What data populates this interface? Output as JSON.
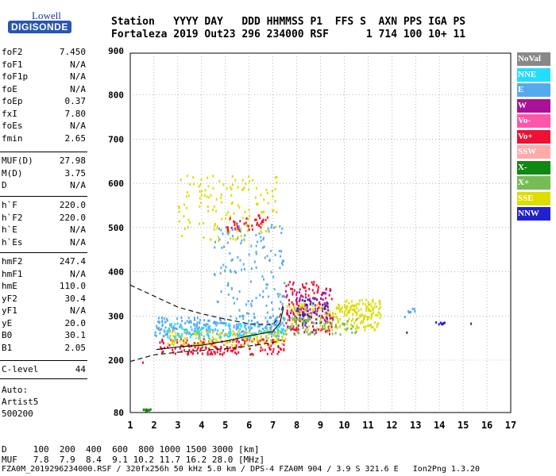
{
  "logo": {
    "top": "Lowell",
    "bottom": "DIGISONDE"
  },
  "header": {
    "line1": "Station   YYYY DAY   DDD HHMMSS P1  FFS S  AXN PPS IGA PS",
    "line2": "Fortaleza 2019 Out23 296 234000 RSF      1 714 100 10+ 11"
  },
  "params_group1": [
    {
      "key": "foF2",
      "value": "7.450"
    },
    {
      "key": "foF1",
      "value": "N/A"
    },
    {
      "key": "foF1p",
      "value": "N/A"
    },
    {
      "key": "foE",
      "value": "N/A"
    },
    {
      "key": "foEp",
      "value": "0.37"
    },
    {
      "key": "fxI",
      "value": "7.80"
    },
    {
      "key": "foEs",
      "value": "N/A"
    },
    {
      "key": "fmin",
      "value": "2.65"
    }
  ],
  "params_group2": [
    {
      "key": "MUF(D)",
      "value": "27.98"
    },
    {
      "key": "M(D)",
      "value": "3.75"
    },
    {
      "key": "D",
      "value": "N/A"
    }
  ],
  "params_group3": [
    {
      "key": "h`F",
      "value": "220.0"
    },
    {
      "key": "h`F2",
      "value": "220.0"
    },
    {
      "key": "h`E",
      "value": "N/A"
    },
    {
      "key": "h`Es",
      "value": "N/A"
    }
  ],
  "params_group4": [
    {
      "key": "hmF2",
      "value": "247.4"
    },
    {
      "key": "hmF1",
      "value": "N/A"
    },
    {
      "key": "hmE",
      "value": "110.0"
    },
    {
      "key": "yF2",
      "value": "30.4"
    },
    {
      "key": "yF1",
      "value": "N/A"
    },
    {
      "key": "yE",
      "value": "20.0"
    },
    {
      "key": "B0",
      "value": "30.1"
    },
    {
      "key": "B1",
      "value": "2.05"
    }
  ],
  "params_group5": [
    {
      "key": "C-level",
      "value": "44"
    }
  ],
  "auto": {
    "line1": "Auto:",
    "line2": "Artist5",
    "line3": "500200"
  },
  "legend": [
    {
      "label": "NoVal",
      "color": "#888888"
    },
    {
      "label": "NNE",
      "color": "#22ddff"
    },
    {
      "label": "E",
      "color": "#55aaee"
    },
    {
      "label": "W",
      "color": "#aa1199"
    },
    {
      "label": "Vo-",
      "color": "#ff55aa"
    },
    {
      "label": "Vo+",
      "color": "#ee1133"
    },
    {
      "label": "SSW",
      "color": "#ffaaaa"
    },
    {
      "label": "X-",
      "color": "#118811"
    },
    {
      "label": "X+",
      "color": "#77bb55"
    },
    {
      "label": "SSE",
      "color": "#dddd00"
    },
    {
      "label": "NNW",
      "color": "#2222cc"
    }
  ],
  "footer": {
    "line1": "D     100  200  400  600  800 1000 1500 3000 [km]",
    "line2": "MUF   7.8  7.9  8.4  9.1 10.2 11.7 16.2 28.0 [MHz]",
    "line3": "FZA0M_2019296234000.RSF / 320fx256h 50 kHz 5.0 km / DPS-4 FZA0M 904 / 3.9 S 321.6 E   Ion2Png 1.3.20"
  },
  "chart_data": {
    "type": "scatter",
    "x_ticks": [
      "1",
      "2",
      "3",
      "4",
      "5",
      "6",
      "7",
      "8",
      "9",
      "10",
      "11",
      "12",
      "13",
      "14",
      "15",
      "16",
      "17"
    ],
    "y_ticks": [
      "80",
      "200",
      "300",
      "400",
      "500",
      "600",
      "700",
      "800",
      "900"
    ],
    "xlim": [
      1,
      17
    ],
    "y_axis_scale": "ionogram-height",
    "grid": "dotted",
    "legend_position": "right",
    "clusters": [
      {
        "label": "E",
        "fmin": 2.0,
        "fmax": 7.5,
        "hmin": 255,
        "hmax": 300,
        "n": 260
      },
      {
        "label": "E",
        "fmin": 4.5,
        "fmax": 7.5,
        "hmin": 300,
        "hmax": 520,
        "n": 140
      },
      {
        "label": "Vo+",
        "fmin": 2.2,
        "fmax": 7.5,
        "hmin": 215,
        "hmax": 250,
        "n": 180
      },
      {
        "label": "SSE",
        "fmin": 2.5,
        "fmax": 7.5,
        "hmin": 235,
        "hmax": 270,
        "n": 150
      },
      {
        "label": "NNE",
        "fmin": 2.5,
        "fmax": 7.5,
        "hmin": 250,
        "hmax": 285,
        "n": 90
      },
      {
        "label": "SSE",
        "fmin": 3.0,
        "fmax": 7.2,
        "hmin": 470,
        "hmax": 620,
        "n": 140
      },
      {
        "label": "Vo+",
        "fmin": 5.0,
        "fmax": 6.8,
        "hmin": 495,
        "hmax": 530,
        "n": 40
      },
      {
        "label": "Vo+",
        "fmin": 7.5,
        "fmax": 9.5,
        "hmin": 260,
        "hmax": 380,
        "n": 130
      },
      {
        "label": "W",
        "fmin": 7.5,
        "fmax": 9.5,
        "hmin": 270,
        "hmax": 360,
        "n": 80
      },
      {
        "label": "NNW",
        "fmin": 7.8,
        "fmax": 9.3,
        "hmin": 280,
        "hmax": 340,
        "n": 50
      },
      {
        "label": "SSE",
        "fmin": 7.5,
        "fmax": 11.5,
        "hmin": 270,
        "hmax": 330,
        "n": 170
      },
      {
        "label": "X+",
        "fmin": 7.5,
        "fmax": 10.5,
        "hmin": 260,
        "hmax": 300,
        "n": 60
      },
      {
        "label": "SSE",
        "fmin": 10.0,
        "fmax": 11.5,
        "hmin": 290,
        "hmax": 340,
        "n": 60
      },
      {
        "label": "E",
        "fmin": 12.5,
        "fmax": 13.0,
        "hmin": 300,
        "hmax": 320,
        "n": 8
      },
      {
        "label": "NNW",
        "fmin": 13.8,
        "fmax": 14.2,
        "hmin": 282,
        "hmax": 288,
        "n": 8
      },
      {
        "label": "X-",
        "fmin": 1.5,
        "fmax": 1.9,
        "hmin": 86,
        "hmax": 90,
        "n": 10
      }
    ],
    "lines": [
      {
        "name": "profile",
        "style": "solid",
        "points": [
          [
            2.1,
            224
          ],
          [
            3,
            230
          ],
          [
            4,
            234
          ],
          [
            5,
            243
          ],
          [
            6,
            255
          ],
          [
            7,
            265
          ],
          [
            7.3,
            285
          ],
          [
            7.45,
            320
          ]
        ]
      },
      {
        "name": "trace-lower",
        "style": "dashed",
        "points": [
          [
            1,
            197
          ],
          [
            2,
            212
          ],
          [
            3,
            218
          ],
          [
            4,
            222
          ],
          [
            5,
            226
          ],
          [
            6,
            232
          ],
          [
            7,
            240
          ],
          [
            7.4,
            246
          ]
        ]
      },
      {
        "name": "trace-upper",
        "style": "dashed",
        "points": [
          [
            1,
            370
          ],
          [
            2,
            345
          ],
          [
            3,
            320
          ],
          [
            4,
            305
          ],
          [
            5,
            293
          ],
          [
            6,
            282
          ],
          [
            7,
            280
          ],
          [
            7.3,
            300
          ],
          [
            7.45,
            330
          ]
        ]
      }
    ],
    "isolated_points": [
      {
        "label": "Vo+",
        "f": 1.5,
        "h": 197
      },
      {
        "label": "NNW",
        "f": 12.6,
        "h": 265
      },
      {
        "label": "NNW",
        "f": 15.3,
        "h": 285
      }
    ]
  }
}
